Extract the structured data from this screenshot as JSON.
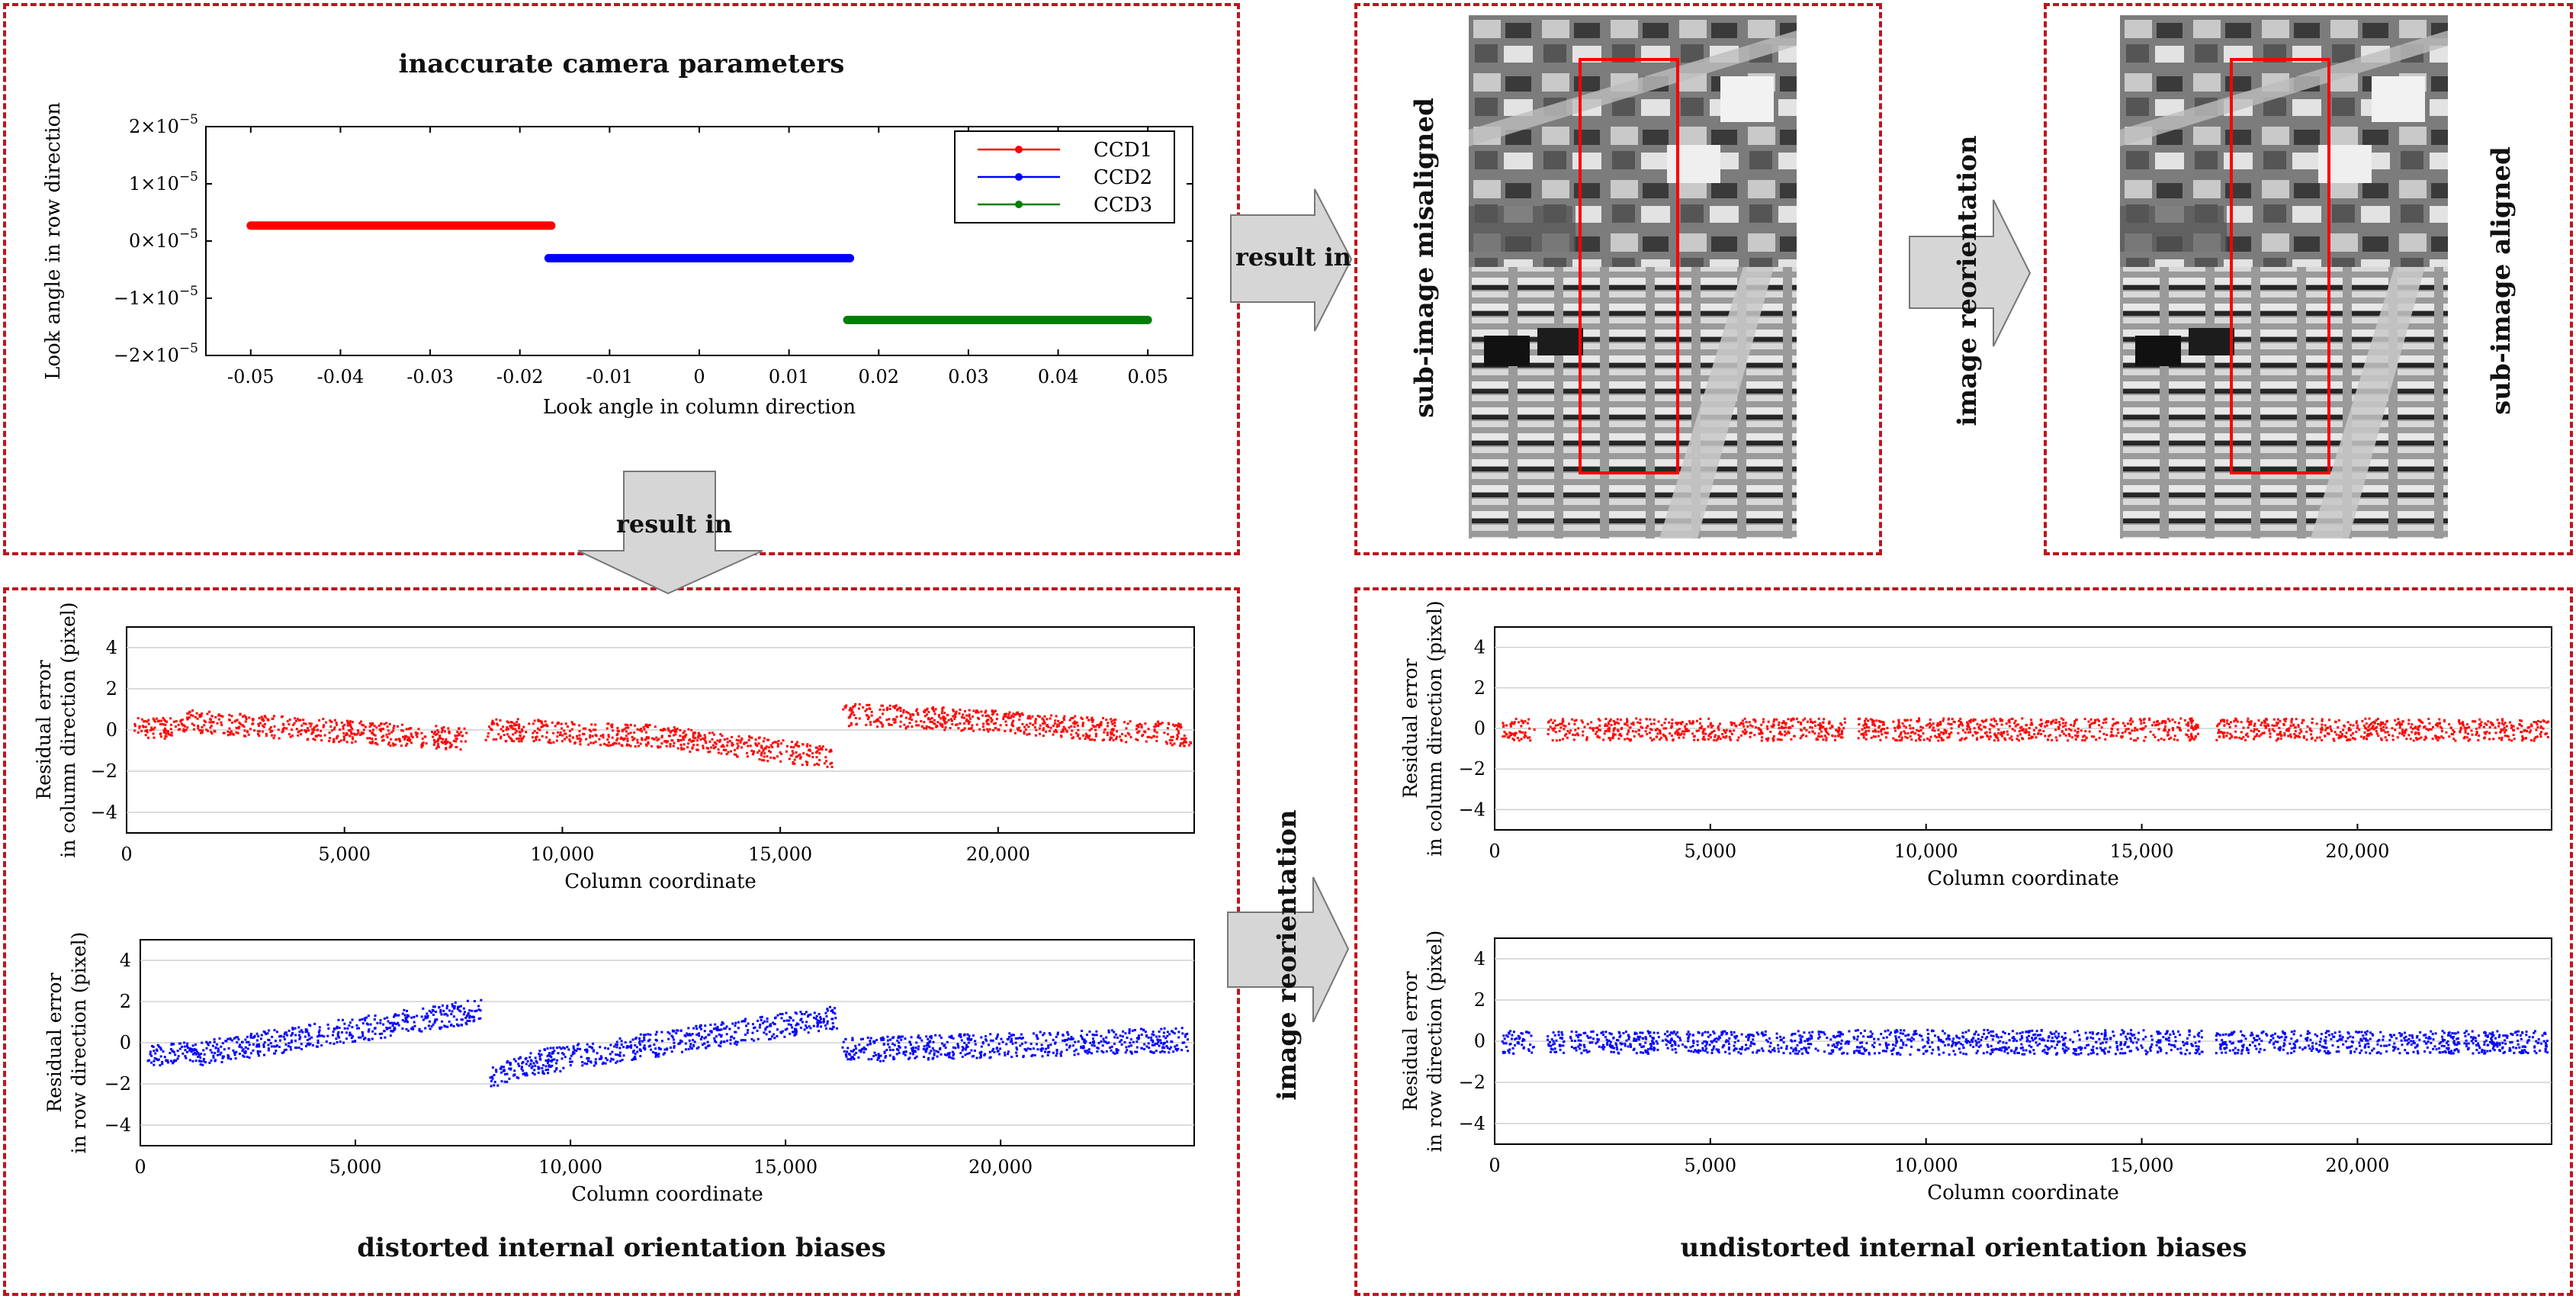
{
  "panels": {
    "camera_title": "inaccurate camera parameters",
    "misaligned_label": "sub-image misaligned",
    "aligned_label": "sub-image aligned",
    "distorted_title": "distorted internal orientation biases",
    "undistorted_title": "undistorted internal orientation biases"
  },
  "arrows": {
    "result_in_right": "result in",
    "result_in_down": "result in",
    "reorientation_top": "image reorientation",
    "reorientation_bottom": "image reorientation"
  },
  "colors": {
    "red": "#ff0000",
    "blue": "#0000ff",
    "green": "#007f00",
    "frame": "#c0141c",
    "arrow_fill": "#d6d6d6"
  },
  "chart_data": [
    {
      "id": "look-angle",
      "type": "line",
      "xlabel": "Look angle in column direction",
      "ylabel": "Look angle  in row direction",
      "xlim": [
        -0.055,
        0.055
      ],
      "ylim": [
        -2e-05,
        2e-05
      ],
      "xticks": [
        "-0.05",
        "-0.04",
        "-0.03",
        "-0.02",
        "-0.01",
        "0",
        "0.01",
        "0.02",
        "0.03",
        "0.04",
        "0.05"
      ],
      "xtick_values": [
        -0.05,
        -0.04,
        -0.03,
        -0.02,
        -0.01,
        0,
        0.01,
        0.02,
        0.03,
        0.04,
        0.05
      ],
      "ytick_values": [
        2e-05,
        1e-05,
        0,
        -1e-05,
        -2e-05
      ],
      "yticks": [
        {
          "mant": "2",
          "exp": "−5"
        },
        {
          "mant": "1",
          "exp": "−5"
        },
        {
          "mant": "0",
          "exp": "−5"
        },
        {
          "mant": "−1",
          "exp": "−5"
        },
        {
          "mant": "−2",
          "exp": "−5"
        }
      ],
      "legend_position": "top-right",
      "series": [
        {
          "name": "CCD1",
          "color": "#ff0000",
          "x": [
            -0.05,
            -0.0165
          ],
          "y": [
            2.7e-06,
            2.7e-06
          ]
        },
        {
          "name": "CCD2",
          "color": "#0000ff",
          "x": [
            -0.0168,
            0.0168
          ],
          "y": [
            -3e-06,
            -3e-06
          ]
        },
        {
          "name": "CCD3",
          "color": "#007f00",
          "x": [
            0.0165,
            0.05
          ],
          "y": [
            -1.38e-05,
            -1.38e-05
          ]
        }
      ]
    },
    {
      "id": "distorted-column",
      "type": "scatter",
      "xlabel": "Column coordinate",
      "ylabel": [
        "Residual error",
        "in column direction (pixel)"
      ],
      "xlim": [
        0,
        24500
      ],
      "ylim": [
        -5,
        5
      ],
      "xticks": [
        "0",
        "5,000",
        "10,000",
        "15,000",
        "20,000"
      ],
      "xtick_values": [
        0,
        5000,
        10000,
        15000,
        20000
      ],
      "yticks": [
        "4",
        "2",
        "0",
        "−2",
        "−4"
      ],
      "ytick_values": [
        4,
        2,
        0,
        -2,
        -4
      ],
      "grid": true,
      "color": "#ff0000",
      "segments": [
        {
          "x": [
            150,
            1200
          ],
          "y0": 0.2,
          "y1": 0.1,
          "spread": 0.5
        },
        {
          "x": [
            1200,
            7800
          ],
          "y0": 0.5,
          "y1": -0.4,
          "spread": 0.55
        },
        {
          "x": [
            8200,
            12700
          ],
          "y0": 0.1,
          "y1": -0.3,
          "spread": 0.55
        },
        {
          "x": [
            12700,
            16200
          ],
          "y0": -0.4,
          "y1": -1.3,
          "spread": 0.55
        },
        {
          "x": [
            16400,
            18800
          ],
          "y0": 0.8,
          "y1": 0.6,
          "spread": 0.55
        },
        {
          "x": [
            18800,
            24400
          ],
          "y0": 0.6,
          "y1": -0.2,
          "spread": 0.55
        }
      ]
    },
    {
      "id": "distorted-row",
      "type": "scatter",
      "xlabel": "Column coordinate",
      "ylabel": [
        "Residual error",
        "in row direction (pixel)"
      ],
      "xlim": [
        0,
        24500
      ],
      "ylim": [
        -5,
        5
      ],
      "xticks": [
        "0",
        "5,000",
        "10,000",
        "15,000",
        "20,000"
      ],
      "xtick_values": [
        0,
        5000,
        10000,
        15000,
        20000
      ],
      "yticks": [
        "4",
        "2",
        "0",
        "−2",
        "−4"
      ],
      "ytick_values": [
        4,
        2,
        0,
        -2,
        -4
      ],
      "grid": true,
      "color": "#0000ff",
      "segments": [
        {
          "x": [
            150,
            1200
          ],
          "y0": -0.6,
          "y1": -0.4,
          "spread": 0.5
        },
        {
          "x": [
            1200,
            7900
          ],
          "y0": -0.5,
          "y1": 1.6,
          "spread": 0.6
        },
        {
          "x": [
            8100,
            9200
          ],
          "y0": -1.6,
          "y1": -0.9,
          "spread": 0.55
        },
        {
          "x": [
            9200,
            16200
          ],
          "y0": -0.9,
          "y1": 1.3,
          "spread": 0.6
        },
        {
          "x": [
            16300,
            24400
          ],
          "y0": -0.3,
          "y1": 0.2,
          "spread": 0.6
        }
      ]
    },
    {
      "id": "undistorted-column",
      "type": "scatter",
      "xlabel": "Column coordinate",
      "ylabel": [
        "Residual error",
        "in column direction (pixel)"
      ],
      "xlim": [
        0,
        24500
      ],
      "ylim": [
        -5,
        5
      ],
      "xticks": [
        "0",
        "5,000",
        "10,000",
        "15,000",
        "20,000"
      ],
      "xtick_values": [
        0,
        5000,
        10000,
        15000,
        20000
      ],
      "yticks": [
        "4",
        "2",
        "0",
        "−2",
        "−4"
      ],
      "ytick_values": [
        4,
        2,
        0,
        -2,
        -4
      ],
      "grid": true,
      "color": "#ff0000",
      "segments": [
        {
          "x": [
            150,
            900
          ],
          "y0": 0.0,
          "y1": 0.0,
          "spread": 0.55
        },
        {
          "x": [
            1200,
            8100
          ],
          "y0": 0.0,
          "y1": 0.0,
          "spread": 0.55
        },
        {
          "x": [
            8400,
            16300
          ],
          "y0": 0.0,
          "y1": 0.0,
          "spread": 0.55
        },
        {
          "x": [
            16700,
            24400
          ],
          "y0": 0.0,
          "y1": 0.0,
          "spread": 0.55
        }
      ]
    },
    {
      "id": "undistorted-row",
      "type": "scatter",
      "xlabel": "Column coordinate",
      "ylabel": [
        "Residual error",
        "in row direction (pixel)"
      ],
      "xlim": [
        0,
        24500
      ],
      "ylim": [
        -5,
        5
      ],
      "xticks": [
        "0",
        "5,000",
        "10,000",
        "15,000",
        "20,000"
      ],
      "xtick_values": [
        0,
        5000,
        10000,
        15000,
        20000
      ],
      "yticks": [
        "4",
        "2",
        "0",
        "−2",
        "−4"
      ],
      "ytick_values": [
        4,
        2,
        0,
        -2,
        -4
      ],
      "grid": true,
      "color": "#0000ff",
      "segments": [
        {
          "x": [
            150,
            900
          ],
          "y0": 0.0,
          "y1": 0.0,
          "spread": 0.55
        },
        {
          "x": [
            1200,
            8200
          ],
          "y0": 0.0,
          "y1": 0.0,
          "spread": 0.55
        },
        {
          "x": [
            8300,
            16400
          ],
          "y0": 0.0,
          "y1": 0.0,
          "spread": 0.6
        },
        {
          "x": [
            16700,
            24400
          ],
          "y0": 0.0,
          "y1": 0.0,
          "spread": 0.55
        }
      ]
    }
  ]
}
